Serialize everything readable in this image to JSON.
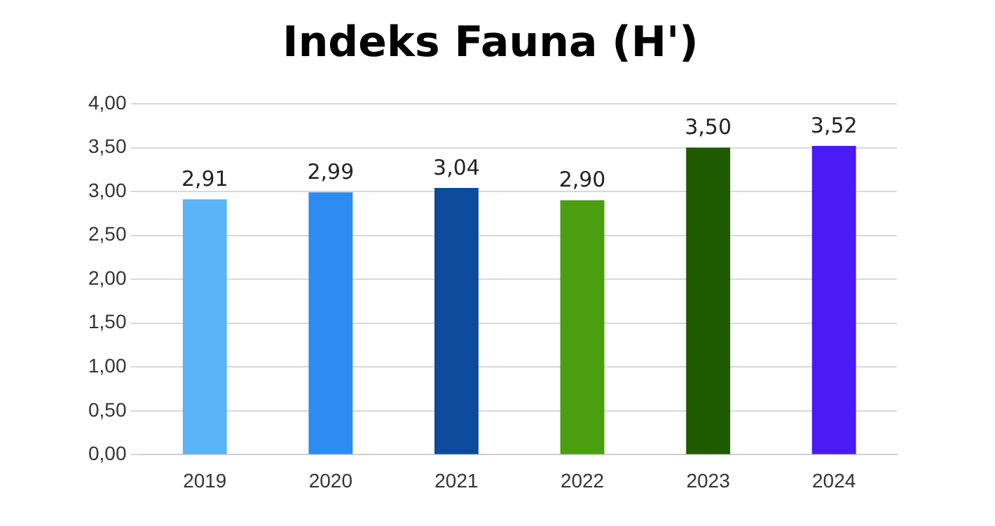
{
  "chart_data": {
    "type": "bar",
    "title": "Indeks Fauna (H')",
    "categories": [
      "2019",
      "2020",
      "2021",
      "2022",
      "2023",
      "2024"
    ],
    "values": [
      2.91,
      2.99,
      3.04,
      2.9,
      3.5,
      3.52
    ],
    "colors": [
      "#5ab4f5",
      "#2e8bf0",
      "#0d4a9a",
      "#4a9e10",
      "#1f5a00",
      "#4a1af5"
    ],
    "value_labels": [
      "2,91",
      "2,99",
      "3,04",
      "2,90",
      "3,50",
      "3,52"
    ],
    "ylim": [
      0,
      4
    ],
    "yticks": [
      {
        "value": 0,
        "label": "0,00"
      },
      {
        "value": 0.5,
        "label": "0,50"
      },
      {
        "value": 1,
        "label": "1,00"
      },
      {
        "value": 1.5,
        "label": "1,50"
      },
      {
        "value": 2,
        "label": "2,00"
      },
      {
        "value": 2.5,
        "label": "2,50"
      },
      {
        "value": 3,
        "label": "3,00"
      },
      {
        "value": 3.5,
        "label": "3,50"
      },
      {
        "value": 4,
        "label": "4,00"
      }
    ],
    "grid": "y",
    "legend": false
  }
}
